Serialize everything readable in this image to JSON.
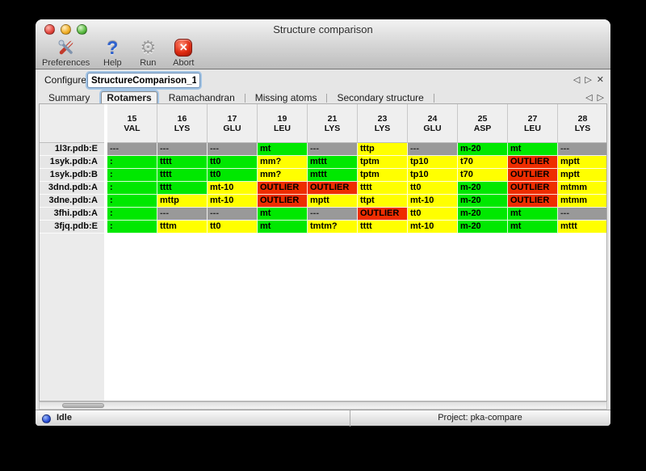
{
  "window": {
    "title": "Structure comparison"
  },
  "toolbar": {
    "items": [
      {
        "label": "Preferences",
        "icon": "tools-icon"
      },
      {
        "label": "Help",
        "icon": "question-icon",
        "glyph": "?"
      },
      {
        "label": "Run",
        "icon": "gear-icon",
        "glyph": "⚙"
      },
      {
        "label": "Abort",
        "icon": "abort-icon",
        "glyph": "✕"
      }
    ]
  },
  "configure": {
    "label": "Configure",
    "value": "StructureComparison_1",
    "nav": {
      "prev": "◁",
      "next": "▷",
      "close": "✕"
    }
  },
  "tabs": {
    "items": [
      "Summary",
      "Rotamers",
      "Ramachandran",
      "Missing atoms",
      "Secondary structure"
    ],
    "selected": "Rotamers",
    "nav": {
      "prev": "◁",
      "next": "▷"
    }
  },
  "colors": {
    "green": "#00e800",
    "yellow": "#ffff00",
    "red": "#ee2d00",
    "gray": "#999999"
  },
  "table": {
    "columns": [
      {
        "num": "15",
        "res": "VAL"
      },
      {
        "num": "16",
        "res": "LYS"
      },
      {
        "num": "17",
        "res": "GLU"
      },
      {
        "num": "19",
        "res": "LEU"
      },
      {
        "num": "21",
        "res": "LYS"
      },
      {
        "num": "23",
        "res": "LYS"
      },
      {
        "num": "24",
        "res": "GLU"
      },
      {
        "num": "25",
        "res": "ASP"
      },
      {
        "num": "27",
        "res": "LEU"
      },
      {
        "num": "28",
        "res": "LYS"
      }
    ],
    "rows": [
      {
        "label": "1l3r.pdb:E",
        "partial": "green",
        "cells": [
          {
            "t": "---",
            "c": "gray"
          },
          {
            "t": "---",
            "c": "gray"
          },
          {
            "t": "---",
            "c": "gray"
          },
          {
            "t": "mt",
            "c": "green"
          },
          {
            "t": "---",
            "c": "gray"
          },
          {
            "t": "tttp",
            "c": "yellow"
          },
          {
            "t": "---",
            "c": "gray"
          },
          {
            "t": "m-20",
            "c": "green"
          },
          {
            "t": "mt",
            "c": "green"
          },
          {
            "t": "---",
            "c": "gray"
          }
        ]
      },
      {
        "label": "1syk.pdb:A",
        "partial": "green",
        "cells": [
          {
            "t": ":",
            "c": "green"
          },
          {
            "t": "tttt",
            "c": "green"
          },
          {
            "t": "tt0",
            "c": "green"
          },
          {
            "t": "mm?",
            "c": "yellow"
          },
          {
            "t": "mttt",
            "c": "green"
          },
          {
            "t": "tptm",
            "c": "yellow"
          },
          {
            "t": "tp10",
            "c": "yellow"
          },
          {
            "t": "t70",
            "c": "yellow"
          },
          {
            "t": "OUTLIER",
            "c": "red"
          },
          {
            "t": "mptt",
            "c": "yellow"
          }
        ]
      },
      {
        "label": "1syk.pdb:B",
        "partial": "green",
        "cells": [
          {
            "t": ":",
            "c": "green"
          },
          {
            "t": "tttt",
            "c": "green"
          },
          {
            "t": "tt0",
            "c": "green"
          },
          {
            "t": "mm?",
            "c": "yellow"
          },
          {
            "t": "mttt",
            "c": "green"
          },
          {
            "t": "tptm",
            "c": "yellow"
          },
          {
            "t": "tp10",
            "c": "yellow"
          },
          {
            "t": "t70",
            "c": "yellow"
          },
          {
            "t": "OUTLIER",
            "c": "red"
          },
          {
            "t": "mptt",
            "c": "yellow"
          }
        ]
      },
      {
        "label": "3dnd.pdb:A",
        "partial": "green",
        "cells": [
          {
            "t": ":",
            "c": "green"
          },
          {
            "t": "tttt",
            "c": "green"
          },
          {
            "t": "mt-10",
            "c": "yellow"
          },
          {
            "t": "OUTLIER",
            "c": "red"
          },
          {
            "t": "OUTLIER",
            "c": "red"
          },
          {
            "t": "tttt",
            "c": "yellow"
          },
          {
            "t": "tt0",
            "c": "yellow"
          },
          {
            "t": "m-20",
            "c": "green"
          },
          {
            "t": "OUTLIER",
            "c": "red"
          },
          {
            "t": "mtmm",
            "c": "yellow"
          }
        ]
      },
      {
        "label": "3dne.pdb:A",
        "partial": "green",
        "cells": [
          {
            "t": ":",
            "c": "green"
          },
          {
            "t": "mttp",
            "c": "yellow"
          },
          {
            "t": "mt-10",
            "c": "yellow"
          },
          {
            "t": "OUTLIER",
            "c": "red"
          },
          {
            "t": "mptt",
            "c": "yellow"
          },
          {
            "t": "ttpt",
            "c": "yellow"
          },
          {
            "t": "mt-10",
            "c": "yellow"
          },
          {
            "t": "m-20",
            "c": "green"
          },
          {
            "t": "OUTLIER",
            "c": "red"
          },
          {
            "t": "mtmm",
            "c": "yellow"
          }
        ]
      },
      {
        "label": "3fhi.pdb:A",
        "partial": "yellow",
        "cells": [
          {
            "t": ":",
            "c": "green"
          },
          {
            "t": "---",
            "c": "gray"
          },
          {
            "t": "---",
            "c": "gray"
          },
          {
            "t": "mt",
            "c": "green"
          },
          {
            "t": "---",
            "c": "gray"
          },
          {
            "t": "OUTLIER",
            "c": "red"
          },
          {
            "t": "tt0",
            "c": "yellow"
          },
          {
            "t": "m-20",
            "c": "green"
          },
          {
            "t": "mt",
            "c": "green"
          },
          {
            "t": "---",
            "c": "gray"
          }
        ]
      },
      {
        "label": "3fjq.pdb:E",
        "partial": "green",
        "cells": [
          {
            "t": ":",
            "c": "green"
          },
          {
            "t": "tttm",
            "c": "yellow"
          },
          {
            "t": "tt0",
            "c": "yellow"
          },
          {
            "t": "mt",
            "c": "green"
          },
          {
            "t": "tmtm?",
            "c": "yellow"
          },
          {
            "t": "tttt",
            "c": "yellow"
          },
          {
            "t": "mt-10",
            "c": "yellow"
          },
          {
            "t": "m-20",
            "c": "green"
          },
          {
            "t": "mt",
            "c": "green"
          },
          {
            "t": "mttt",
            "c": "yellow"
          }
        ]
      }
    ]
  },
  "statusbar": {
    "status": "Idle",
    "project": "Project: pka-compare"
  }
}
